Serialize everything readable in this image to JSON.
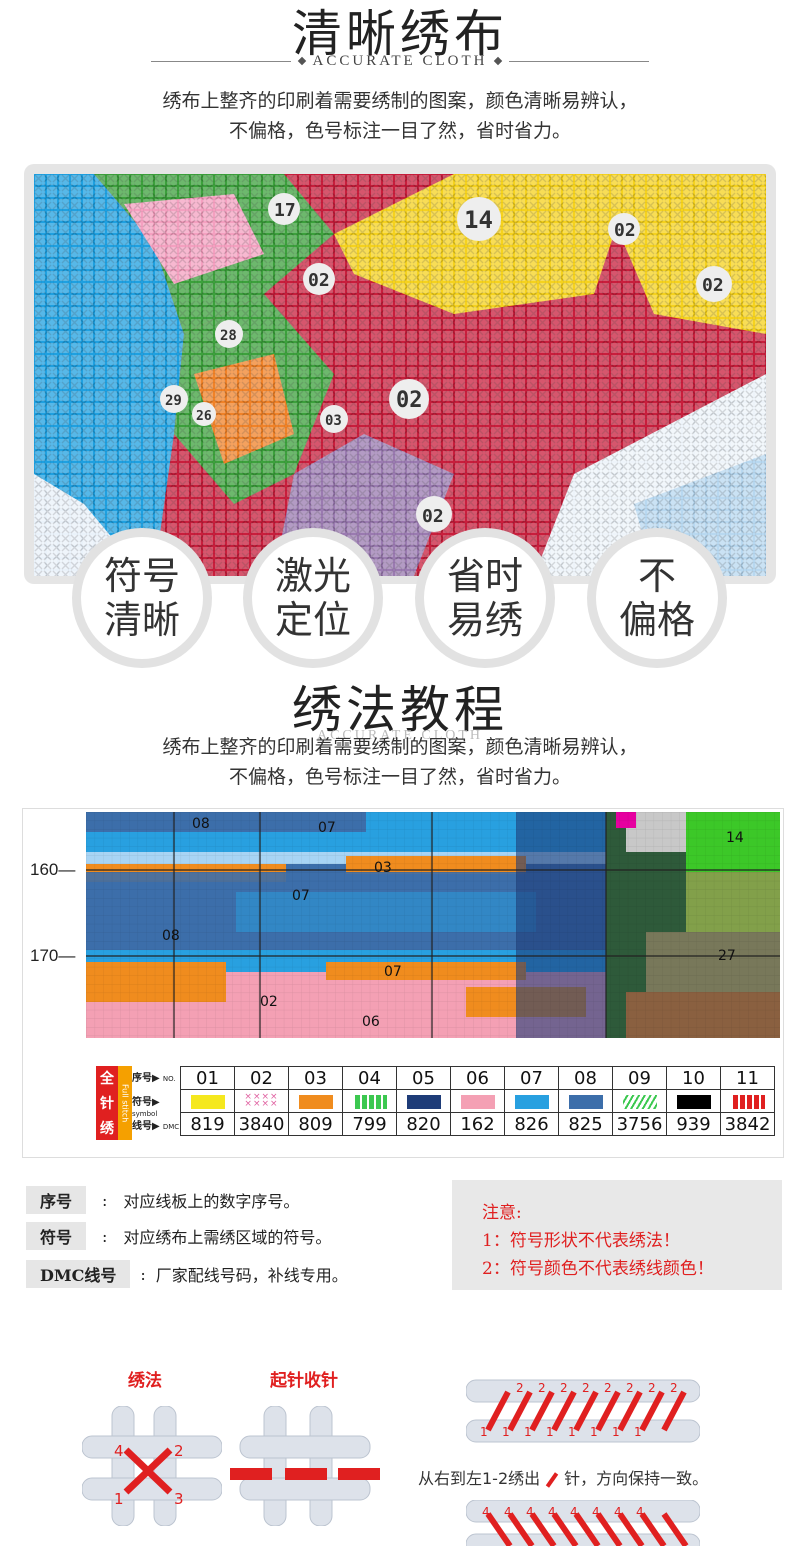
{
  "section1": {
    "title": "清晰绣布",
    "subtitle": "ACCURATE CLOTH",
    "desc_line1": "绣布上整齐的印刷着需要绣制的图案，颜色清晰易辨认，",
    "desc_line2": "不偏格，色号标注一目了然，省时省力。"
  },
  "photo": {
    "symbols": [
      "17",
      "14",
      "02",
      "02",
      "02",
      "02",
      "02",
      "28",
      "29",
      "26",
      "03"
    ],
    "colors": {
      "blue": "#1fa0e0",
      "red": "#c81e3c",
      "yellow": "#f5d21e",
      "green": "#3ca03c",
      "orange": "#f08228",
      "white": "#eef4fa"
    }
  },
  "features": [
    {
      "line1": "符号",
      "line2": "清晰"
    },
    {
      "line1": "激光",
      "line2": "定位"
    },
    {
      "line1": "省时",
      "line2": "易绣"
    },
    {
      "line1": "不",
      "line2": "偏格"
    }
  ],
  "section2": {
    "title": "绣法教程",
    "subtitle": "ACCURATE CLOTH",
    "desc_line1": "绣布上整齐的印刷着需要绣制的图案，颜色清晰易辨认，",
    "desc_line2": "不偏格，色号标注一目了然，省时省力。"
  },
  "chart": {
    "row_labels": [
      "160",
      "170"
    ],
    "cell_labels": [
      "08",
      "07",
      "03",
      "07",
      "08",
      "07",
      "02",
      "06",
      "14",
      "27"
    ]
  },
  "legend": {
    "side_label": [
      "全",
      "针",
      "绣"
    ],
    "side_label_en": "Full stitch",
    "row_headers": [
      {
        "zh": "序号",
        "en": "NO."
      },
      {
        "zh": "符号",
        "en": "symbol"
      },
      {
        "zh": "线号",
        "en": "DMC"
      }
    ],
    "items": [
      {
        "no": "01",
        "dmc": "819",
        "color": "#f5e81e"
      },
      {
        "no": "02",
        "dmc": "3840",
        "color": "xx"
      },
      {
        "no": "03",
        "dmc": "809",
        "color": "#f08c1e"
      },
      {
        "no": "04",
        "dmc": "799",
        "color": "dots-green"
      },
      {
        "no": "05",
        "dmc": "820",
        "color": "#1e3c78"
      },
      {
        "no": "06",
        "dmc": "162",
        "color": "#f4a0b4"
      },
      {
        "no": "07",
        "dmc": "826",
        "color": "#28a0e0"
      },
      {
        "no": "08",
        "dmc": "825",
        "color": "#3c6eaa"
      },
      {
        "no": "09",
        "dmc": "3756",
        "color": "slash-green"
      },
      {
        "no": "10",
        "dmc": "939",
        "color": "#000000"
      },
      {
        "no": "11",
        "dmc": "3842",
        "color": "dots-red"
      }
    ]
  },
  "info": {
    "rows": [
      {
        "tag": "序号",
        "colon": ":",
        "text": "对应线板上的数字序号。"
      },
      {
        "tag": "符号",
        "colon": ":",
        "text": "对应绣布上需绣区域的符号。"
      },
      {
        "tag": "DMC线号",
        "colon": ":",
        "text": "厂家配线号码，补线专用。"
      }
    ],
    "note_title": "注意:",
    "note1": "1：符号形状不代表绣法！",
    "note2": "2：符号颜色不代表绣线颜色！"
  },
  "tutorial": {
    "method_title": "绣法",
    "start_title": "起针收针",
    "caption_before": "从右到左1-2绣出",
    "caption_after": "针，方向保持一致。",
    "cross_numbers": [
      "4",
      "2",
      "1",
      "3"
    ],
    "row_top": "2",
    "row_bottom": "1",
    "row_bottom2": "4"
  }
}
